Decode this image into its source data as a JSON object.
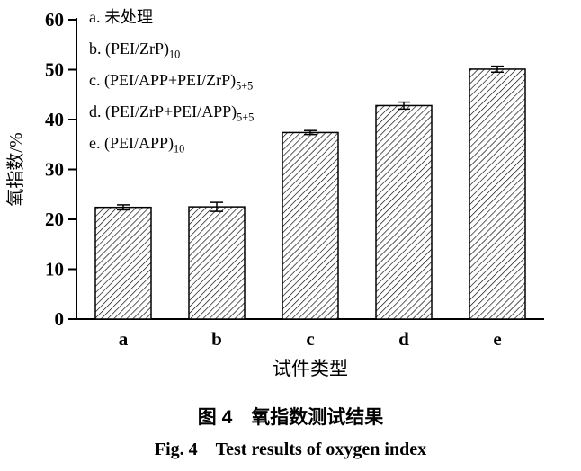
{
  "chart_data": {
    "type": "bar",
    "categories": [
      "a",
      "b",
      "c",
      "d",
      "e"
    ],
    "values": [
      22.4,
      22.5,
      37.4,
      42.8,
      50.1
    ],
    "errors": [
      0.5,
      0.9,
      0.4,
      0.7,
      0.6
    ],
    "title": "",
    "xlabel": "试件类型",
    "ylabel": "氧指数/%",
    "ylim": [
      0,
      60
    ],
    "yticks": [
      0,
      10,
      20,
      30,
      40,
      50,
      60
    ],
    "bar_fill": "diagonal-hatch",
    "bar_color": "#000000",
    "background_color": "#ffffff",
    "grid": false,
    "legend_position": "top-left",
    "legend_items": [
      {
        "text": "a. 未处理",
        "sub": ""
      },
      {
        "text": "b. (PEI/ZrP)",
        "sub": "10"
      },
      {
        "text": "c. (PEI/APP+PEI/ZrP)",
        "sub": "5+5"
      },
      {
        "text": "d. (PEI/ZrP+PEI/APP)",
        "sub": "5+5"
      },
      {
        "text": "e. (PEI/APP)",
        "sub": "10"
      }
    ]
  },
  "caption": {
    "zh": "图 4　氧指数测试结果",
    "en": "Fig. 4　Test results of oxygen index"
  }
}
